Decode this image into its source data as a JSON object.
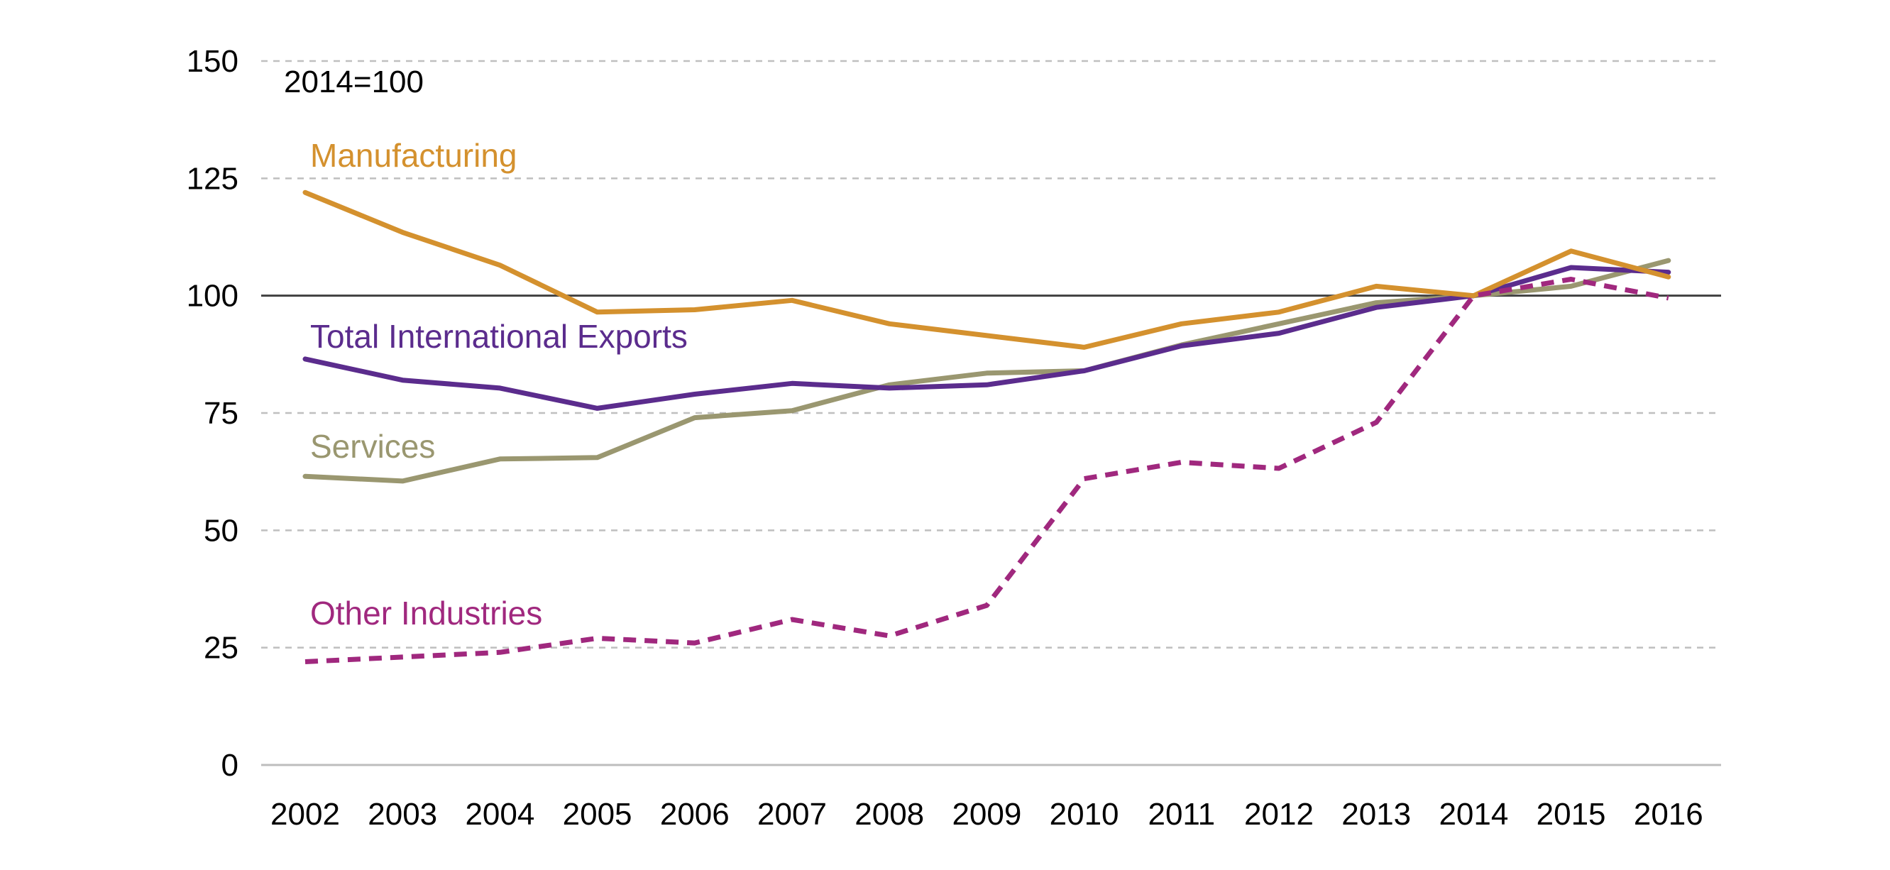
{
  "chart_data": {
    "type": "line",
    "title": "",
    "xlabel": "",
    "ylabel": "",
    "annotation": "2014=100",
    "x": [
      "2002",
      "2003",
      "2004",
      "2005",
      "2006",
      "2007",
      "2008",
      "2009",
      "2010",
      "2011",
      "2012",
      "2013",
      "2014",
      "2015",
      "2016"
    ],
    "ylim": [
      0,
      150
    ],
    "yticks": [
      "0",
      "25",
      "50",
      "75",
      "100",
      "125",
      "150"
    ],
    "grid": true,
    "reference_line": 100,
    "series": [
      {
        "name": "Manufacturing",
        "color": "#D4912E",
        "dashed": false,
        "values": [
          122,
          113.5,
          106.5,
          96.5,
          97,
          99,
          94,
          91.5,
          89,
          94,
          96.5,
          102,
          100,
          109.5,
          104
        ]
      },
      {
        "name": "Total International Exports",
        "color": "#5B2C8D",
        "dashed": false,
        "values": [
          86.5,
          82,
          80.3,
          76,
          79,
          81.3,
          80.3,
          81,
          84,
          89.3,
          92,
          97.5,
          100,
          106,
          105
        ]
      },
      {
        "name": "Services",
        "color": "#9A9770",
        "dashed": false,
        "values": [
          61.5,
          60.5,
          65.2,
          65.5,
          74,
          75.5,
          81,
          83.5,
          84,
          89.5,
          94,
          98.5,
          100,
          102,
          107.5
        ]
      },
      {
        "name": "Other Industries",
        "color": "#A0287E",
        "dashed": true,
        "values": [
          22,
          23,
          24,
          27,
          26,
          31,
          27.5,
          34,
          61,
          64.5,
          63.2,
          73,
          100,
          103.5,
          99.5
        ]
      }
    ]
  }
}
